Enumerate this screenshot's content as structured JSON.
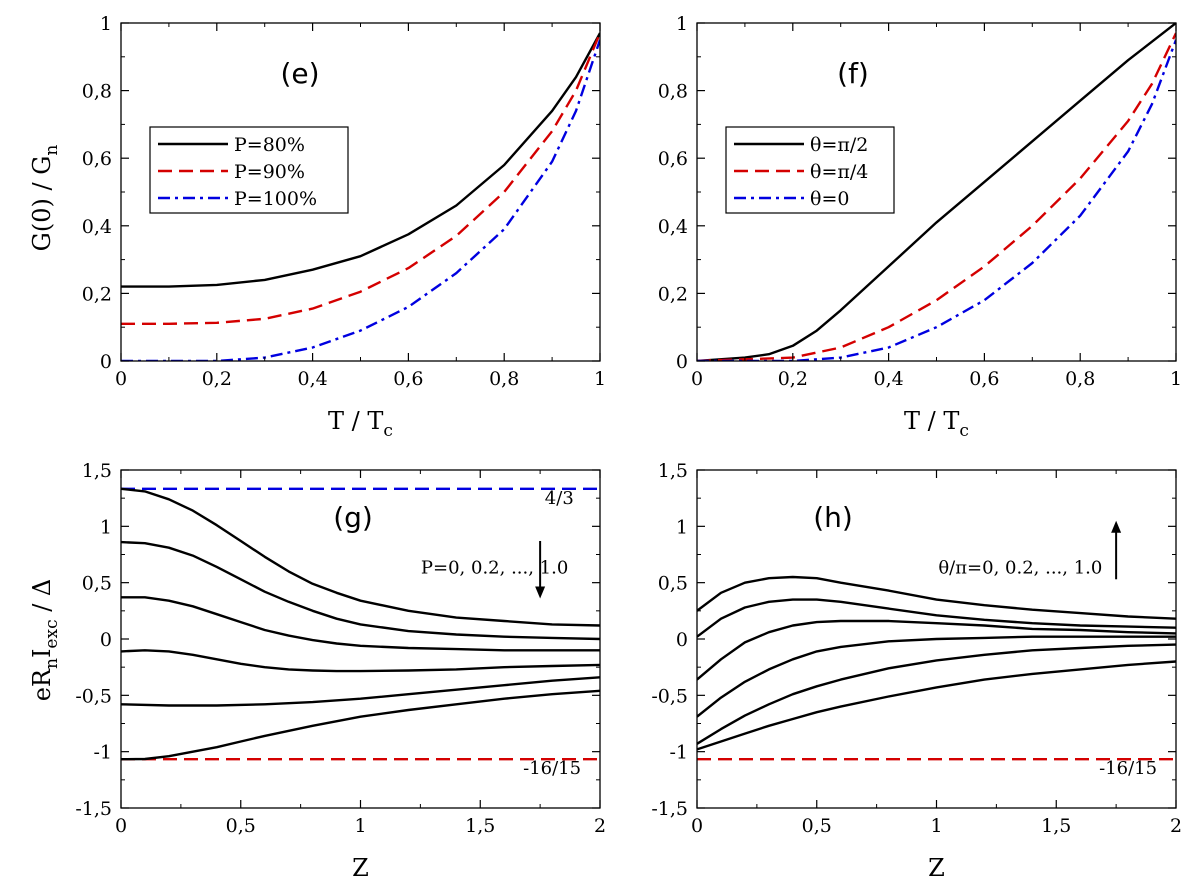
{
  "figure": {
    "y_label_top": {
      "main": "G(0) / G",
      "sub": "n"
    },
    "y_label_bottom": {
      "a": "eR",
      "a_sub": "n",
      "b": "I",
      "b_sub": "exc",
      "c": " / Δ"
    }
  },
  "chart_data": [
    {
      "id": "e",
      "type": "line",
      "panel_label": "(e)",
      "xlabel": {
        "main": "T / T",
        "sub": "c"
      },
      "ylabel": "G(0) / Gn",
      "xlim": [
        0,
        1
      ],
      "ylim": [
        0,
        1
      ],
      "xticks": [
        0,
        0.2,
        0.4,
        0.6,
        0.8,
        1
      ],
      "xtick_labels": [
        "0",
        "0,2",
        "0,4",
        "0,6",
        "0,8",
        "1"
      ],
      "yticks": [
        0,
        0.2,
        0.4,
        0.6,
        0.8,
        1
      ],
      "ytick_labels": [
        "0",
        "0,2",
        "0,4",
        "0,6",
        "0,8",
        "1"
      ],
      "legend_position": "upper-left",
      "series": [
        {
          "name": "P=80%",
          "color": "#000000",
          "dash": "solid",
          "x": [
            0,
            0.1,
            0.2,
            0.3,
            0.4,
            0.5,
            0.6,
            0.7,
            0.8,
            0.9,
            0.95,
            1.0
          ],
          "y": [
            0.22,
            0.22,
            0.225,
            0.24,
            0.27,
            0.31,
            0.375,
            0.46,
            0.58,
            0.74,
            0.84,
            0.97
          ]
        },
        {
          "name": "P=90%",
          "color": "#d40000",
          "dash": "dashed",
          "x": [
            0,
            0.1,
            0.2,
            0.3,
            0.4,
            0.5,
            0.6,
            0.7,
            0.8,
            0.9,
            0.95,
            1.0
          ],
          "y": [
            0.11,
            0.11,
            0.113,
            0.125,
            0.155,
            0.205,
            0.275,
            0.37,
            0.5,
            0.68,
            0.8,
            0.97
          ]
        },
        {
          "name": "P=100%",
          "color": "#0000e0",
          "dash": "dashdot",
          "x": [
            0,
            0.2,
            0.3,
            0.4,
            0.5,
            0.6,
            0.7,
            0.8,
            0.9,
            0.95,
            1.0
          ],
          "y": [
            0,
            0,
            0.01,
            0.04,
            0.09,
            0.16,
            0.26,
            0.39,
            0.59,
            0.74,
            0.95
          ]
        }
      ],
      "annotations": []
    },
    {
      "id": "f",
      "type": "line",
      "panel_label": "(f)",
      "xlabel": {
        "main": "T / T",
        "sub": "c"
      },
      "ylabel": "",
      "xlim": [
        0,
        1
      ],
      "ylim": [
        0,
        1
      ],
      "xticks": [
        0,
        0.2,
        0.4,
        0.6,
        0.8,
        1
      ],
      "xtick_labels": [
        "0",
        "0,2",
        "0,4",
        "0,6",
        "0,8",
        "1"
      ],
      "yticks": [
        0,
        0.2,
        0.4,
        0.6,
        0.8,
        1
      ],
      "ytick_labels": [
        "0",
        "0,2",
        "0,4",
        "0,6",
        "0,8",
        "1"
      ],
      "legend_position": "upper-left",
      "series": [
        {
          "name": "θ=π/2",
          "color": "#000000",
          "dash": "solid",
          "x": [
            0,
            0.1,
            0.15,
            0.2,
            0.25,
            0.3,
            0.4,
            0.5,
            0.6,
            0.7,
            0.8,
            0.9,
            1.0
          ],
          "y": [
            0,
            0.01,
            0.02,
            0.045,
            0.09,
            0.15,
            0.28,
            0.41,
            0.53,
            0.65,
            0.77,
            0.89,
            1.0
          ]
        },
        {
          "name": "θ=π/4",
          "color": "#d40000",
          "dash": "dashed",
          "x": [
            0,
            0.2,
            0.3,
            0.4,
            0.5,
            0.6,
            0.7,
            0.8,
            0.9,
            0.95,
            1.0
          ],
          "y": [
            0,
            0.01,
            0.04,
            0.1,
            0.18,
            0.28,
            0.4,
            0.54,
            0.71,
            0.82,
            0.97
          ]
        },
        {
          "name": "θ=0",
          "color": "#0000e0",
          "dash": "dashdot",
          "x": [
            0,
            0.2,
            0.3,
            0.4,
            0.5,
            0.6,
            0.7,
            0.8,
            0.9,
            0.95,
            1.0
          ],
          "y": [
            0,
            0,
            0.01,
            0.04,
            0.1,
            0.18,
            0.29,
            0.43,
            0.62,
            0.76,
            0.95
          ]
        }
      ],
      "annotations": []
    },
    {
      "id": "g",
      "type": "line",
      "panel_label": "(g)",
      "xlabel": {
        "main": "Z",
        "sub": ""
      },
      "ylabel": "eRn Iexc / Δ",
      "xlim": [
        0,
        2
      ],
      "ylim": [
        -1.5,
        1.5
      ],
      "xticks": [
        0,
        0.5,
        1,
        1.5,
        2
      ],
      "xtick_labels": [
        "0",
        "0,5",
        "1",
        "1,5",
        "2"
      ],
      "yticks": [
        -1.5,
        -1,
        -0.5,
        0,
        0.5,
        1,
        1.5
      ],
      "ytick_labels": [
        "-1,5",
        "-1",
        "-0,5",
        "0",
        "0,5",
        "1",
        "1,5"
      ],
      "legend_position": "none",
      "series": [
        {
          "color": "#0000e0",
          "dash": "dashed",
          "x": [
            0,
            2
          ],
          "y": [
            1.333,
            1.333
          ]
        },
        {
          "color": "#d40000",
          "dash": "dashed",
          "x": [
            0,
            2
          ],
          "y": [
            -1.067,
            -1.067
          ]
        },
        {
          "color": "#000000",
          "dash": "solid",
          "x": [
            0,
            0.1,
            0.2,
            0.3,
            0.4,
            0.5,
            0.6,
            0.7,
            0.8,
            0.9,
            1.0,
            1.2,
            1.4,
            1.6,
            1.8,
            2.0
          ],
          "y": [
            1.333,
            1.31,
            1.24,
            1.14,
            1.01,
            0.87,
            0.73,
            0.6,
            0.49,
            0.41,
            0.34,
            0.25,
            0.19,
            0.16,
            0.13,
            0.12
          ]
        },
        {
          "color": "#000000",
          "dash": "solid",
          "x": [
            0,
            0.1,
            0.2,
            0.3,
            0.4,
            0.5,
            0.6,
            0.7,
            0.8,
            0.9,
            1.0,
            1.2,
            1.4,
            1.6,
            1.8,
            2.0
          ],
          "y": [
            0.86,
            0.85,
            0.81,
            0.74,
            0.64,
            0.53,
            0.42,
            0.33,
            0.25,
            0.18,
            0.13,
            0.07,
            0.04,
            0.02,
            0.01,
            0.0
          ]
        },
        {
          "color": "#000000",
          "dash": "solid",
          "x": [
            0,
            0.1,
            0.2,
            0.3,
            0.4,
            0.5,
            0.6,
            0.7,
            0.8,
            0.9,
            1.0,
            1.2,
            1.4,
            1.6,
            1.8,
            2.0
          ],
          "y": [
            0.37,
            0.37,
            0.34,
            0.29,
            0.22,
            0.15,
            0.08,
            0.03,
            -0.01,
            -0.04,
            -0.06,
            -0.08,
            -0.09,
            -0.1,
            -0.1,
            -0.1
          ]
        },
        {
          "color": "#000000",
          "dash": "solid",
          "x": [
            0,
            0.1,
            0.2,
            0.3,
            0.4,
            0.5,
            0.6,
            0.7,
            0.8,
            0.9,
            1.0,
            1.2,
            1.4,
            1.6,
            1.8,
            2.0
          ],
          "y": [
            -0.11,
            -0.1,
            -0.11,
            -0.14,
            -0.18,
            -0.22,
            -0.25,
            -0.27,
            -0.28,
            -0.285,
            -0.285,
            -0.28,
            -0.27,
            -0.25,
            -0.24,
            -0.23
          ]
        },
        {
          "color": "#000000",
          "dash": "solid",
          "x": [
            0,
            0.2,
            0.4,
            0.6,
            0.8,
            1.0,
            1.2,
            1.4,
            1.6,
            1.8,
            2.0
          ],
          "y": [
            -0.58,
            -0.59,
            -0.59,
            -0.58,
            -0.56,
            -0.53,
            -0.49,
            -0.45,
            -0.41,
            -0.37,
            -0.34
          ]
        },
        {
          "color": "#000000",
          "dash": "solid",
          "x": [
            0,
            0.1,
            0.2,
            0.3,
            0.4,
            0.5,
            0.6,
            0.8,
            1.0,
            1.2,
            1.4,
            1.6,
            1.8,
            2.0
          ],
          "y": [
            -1.067,
            -1.065,
            -1.04,
            -1.0,
            -0.96,
            -0.91,
            -0.86,
            -0.77,
            -0.69,
            -0.63,
            -0.58,
            -0.53,
            -0.49,
            -0.46
          ]
        }
      ],
      "annotations": [
        {
          "text": "4/3",
          "x": 1.83,
          "y": 1.2
        },
        {
          "text": "-16/15",
          "x": 1.8,
          "y": -1.2
        },
        {
          "text": "P=0, 0.2, ..., 1.0",
          "x": 1.56,
          "y": 0.58
        }
      ],
      "arrow": {
        "x": 1.75,
        "y_from": 0.87,
        "y_to": 0.36
      }
    },
    {
      "id": "h",
      "type": "line",
      "panel_label": "(h)",
      "xlabel": {
        "main": "Z",
        "sub": ""
      },
      "ylabel": "",
      "xlim": [
        0,
        2
      ],
      "ylim": [
        -1.5,
        1.5
      ],
      "xticks": [
        0,
        0.5,
        1,
        1.5,
        2
      ],
      "xtick_labels": [
        "0",
        "0,5",
        "1",
        "1,5",
        "2"
      ],
      "yticks": [
        -1.5,
        -1,
        -0.5,
        0,
        0.5,
        1,
        1.5
      ],
      "ytick_labels": [
        "-1,5",
        "-1",
        "-0,5",
        "0",
        "0,5",
        "1",
        "1,5"
      ],
      "legend_position": "none",
      "series": [
        {
          "color": "#d40000",
          "dash": "dashed",
          "x": [
            0,
            2
          ],
          "y": [
            -1.067,
            -1.067
          ]
        },
        {
          "color": "#000000",
          "dash": "solid",
          "x": [
            0,
            0.1,
            0.2,
            0.3,
            0.4,
            0.5,
            0.6,
            0.8,
            1.0,
            1.2,
            1.4,
            1.6,
            1.8,
            2.0
          ],
          "y": [
            0.25,
            0.41,
            0.5,
            0.54,
            0.55,
            0.54,
            0.5,
            0.43,
            0.35,
            0.3,
            0.26,
            0.23,
            0.2,
            0.18
          ]
        },
        {
          "color": "#000000",
          "dash": "solid",
          "x": [
            0,
            0.1,
            0.2,
            0.3,
            0.4,
            0.5,
            0.6,
            0.8,
            1.0,
            1.2,
            1.4,
            1.6,
            1.8,
            2.0
          ],
          "y": [
            0.02,
            0.18,
            0.28,
            0.33,
            0.35,
            0.35,
            0.33,
            0.27,
            0.21,
            0.17,
            0.14,
            0.12,
            0.11,
            0.1
          ]
        },
        {
          "color": "#000000",
          "dash": "solid",
          "x": [
            0,
            0.1,
            0.2,
            0.3,
            0.4,
            0.5,
            0.6,
            0.7,
            0.8,
            1.0,
            1.2,
            1.4,
            1.6,
            1.8,
            2.0
          ],
          "y": [
            -0.36,
            -0.18,
            -0.03,
            0.06,
            0.12,
            0.15,
            0.16,
            0.16,
            0.16,
            0.14,
            0.12,
            0.09,
            0.08,
            0.06,
            0.05
          ]
        },
        {
          "color": "#000000",
          "dash": "solid",
          "x": [
            0,
            0.1,
            0.2,
            0.3,
            0.4,
            0.5,
            0.6,
            0.8,
            1.0,
            1.2,
            1.4,
            1.6,
            1.8,
            2.0
          ],
          "y": [
            -0.69,
            -0.52,
            -0.38,
            -0.27,
            -0.18,
            -0.11,
            -0.07,
            -0.02,
            0.0,
            0.01,
            0.02,
            0.02,
            0.02,
            0.02
          ]
        },
        {
          "color": "#000000",
          "dash": "solid",
          "x": [
            0,
            0.1,
            0.2,
            0.3,
            0.4,
            0.5,
            0.6,
            0.8,
            1.0,
            1.2,
            1.4,
            1.6,
            1.8,
            2.0
          ],
          "y": [
            -0.93,
            -0.8,
            -0.68,
            -0.58,
            -0.49,
            -0.42,
            -0.36,
            -0.26,
            -0.19,
            -0.14,
            -0.1,
            -0.08,
            -0.06,
            -0.05
          ]
        },
        {
          "color": "#000000",
          "dash": "solid",
          "x": [
            0,
            0.1,
            0.2,
            0.3,
            0.4,
            0.5,
            0.6,
            0.8,
            1.0,
            1.2,
            1.4,
            1.6,
            1.8,
            2.0
          ],
          "y": [
            -0.98,
            -0.91,
            -0.84,
            -0.77,
            -0.71,
            -0.65,
            -0.6,
            -0.51,
            -0.43,
            -0.36,
            -0.31,
            -0.27,
            -0.23,
            -0.2
          ]
        }
      ],
      "annotations": [
        {
          "text": "-16/15",
          "x": 1.8,
          "y": -1.2
        },
        {
          "text": "θ/π=0, 0.2, ..., 1.0",
          "x": 1.35,
          "y": 0.58
        }
      ],
      "arrow": {
        "x": 1.75,
        "y_from": 0.53,
        "y_to": 1.05
      }
    }
  ]
}
